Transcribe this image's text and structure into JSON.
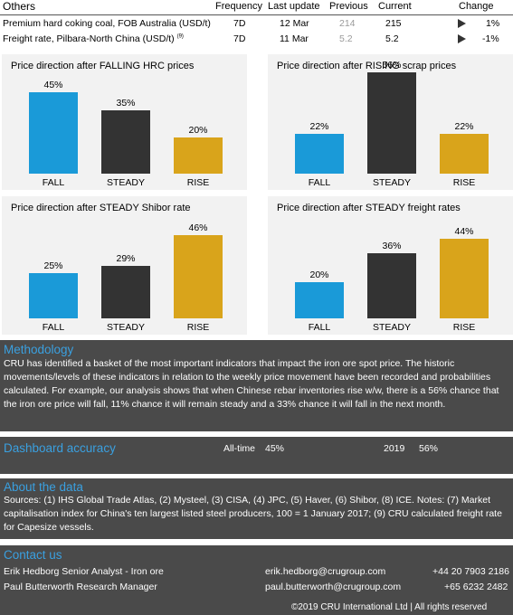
{
  "others_table": {
    "headers": {
      "name": "Others",
      "frequency": "Frequency",
      "last_update": "Last update",
      "previous": "Previous",
      "current": "Current",
      "change": "Change"
    },
    "rows": [
      {
        "name": "Premium hard coking coal, FOB Australia (USD/t)",
        "footnote": "",
        "frequency": "7D",
        "last_update": "12 Mar",
        "previous": "214",
        "current": "215",
        "change": "1%",
        "direction_icon": "play-triangle-icon"
      },
      {
        "name": "Freight rate, Pilbara-North China (USD/t)",
        "footnote": "(9)",
        "frequency": "7D",
        "last_update": "11 Mar",
        "previous": "5.2",
        "current": "5.2",
        "change": "-1%",
        "direction_icon": "play-triangle-icon"
      }
    ]
  },
  "colors": {
    "fall": "#1a9ad8",
    "steady": "#333333",
    "rise": "#d9a41b",
    "section_bg": "#4a4a4a",
    "section_title": "#3aa0e0",
    "chart_bg": "#f2f2f2"
  },
  "chart_data": [
    {
      "type": "bar",
      "title": "Price direction after FALLING HRC prices",
      "categories": [
        "FALL",
        "STEADY",
        "RISE"
      ],
      "values": [
        45,
        35,
        20
      ],
      "value_labels": [
        "45%",
        "35%",
        "20%"
      ],
      "ylim": [
        0,
        56
      ],
      "grid": false
    },
    {
      "type": "bar",
      "title": "Price direction after RISING scrap prices",
      "categories": [
        "FALL",
        "STEADY",
        "RISE"
      ],
      "values": [
        22,
        56,
        22
      ],
      "value_labels": [
        "22%",
        "56%",
        "22%"
      ],
      "ylim": [
        0,
        56
      ],
      "grid": false
    },
    {
      "type": "bar",
      "title": "Price direction after STEADY Shibor rate",
      "categories": [
        "FALL",
        "STEADY",
        "RISE"
      ],
      "values": [
        25,
        29,
        46
      ],
      "value_labels": [
        "25%",
        "29%",
        "46%"
      ],
      "ylim": [
        0,
        56
      ],
      "grid": false
    },
    {
      "type": "bar",
      "title": "Price direction after STEADY freight rates",
      "categories": [
        "FALL",
        "STEADY",
        "RISE"
      ],
      "values": [
        20,
        36,
        44
      ],
      "value_labels": [
        "20%",
        "36%",
        "44%"
      ],
      "ylim": [
        0,
        56
      ],
      "grid": false
    }
  ],
  "methodology": {
    "title": "Methodology",
    "body": "CRU has identified a basket of the most important indicators that impact the iron ore spot price. The historic movements/levels of these indicators in relation to the weekly price movement have been recorded and probabilities calculated.  For example, our analysis shows that when Chinese rebar inventories rise w/w, there is a 56% chance that the iron ore price will fall, 11% chance it will remain steady and a 33% chance it will fall in the next month."
  },
  "accuracy": {
    "title": "Dashboard accuracy",
    "alltime_label": "All-time",
    "alltime_value": "45%",
    "year_label": "2019",
    "year_value": "56%"
  },
  "about": {
    "title": "About the data",
    "body": "Sources: (1) IHS Global Trade Atlas, (2) Mysteel, (3) CISA, (4) JPC, (5) Haver, (6) Shibor, (8) ICE. Notes: (7) Market capitalisation index for China's ten largest listed steel producers, 100 = 1 January 2017; (9) CRU calculated freight rate for Capesize vessels."
  },
  "contact": {
    "title": "Contact us",
    "people": [
      {
        "name_role": "Erik Hedborg Senior Analyst - Iron ore",
        "email": "erik.hedborg@crugroup.com",
        "phone": "+44 20 7903 2186"
      },
      {
        "name_role": "Paul Butterworth Research Manager",
        "email": "paul.butterworth@crugroup.com",
        "phone": "+65 6232 2482"
      }
    ],
    "copyright": "©2019 CRU International Ltd  |  All rights reserved"
  }
}
